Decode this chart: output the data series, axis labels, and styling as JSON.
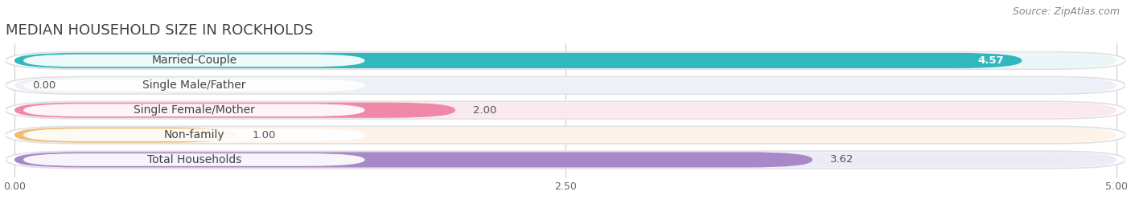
{
  "title": "MEDIAN HOUSEHOLD SIZE IN ROCKHOLDS",
  "source": "Source: ZipAtlas.com",
  "categories": [
    "Married-Couple",
    "Single Male/Father",
    "Single Female/Mother",
    "Non-family",
    "Total Households"
  ],
  "values": [
    4.57,
    0.0,
    2.0,
    1.0,
    3.62
  ],
  "bar_colors": [
    "#30b8be",
    "#a0aadd",
    "#f088a8",
    "#f0bc78",
    "#a888c8"
  ],
  "bar_bg_colors": [
    "#eaf6f7",
    "#eef0f8",
    "#faeaf0",
    "#fdf3e8",
    "#eeeaf6"
  ],
  "xlim": [
    0,
    5.0
  ],
  "xticks": [
    0.0,
    2.5,
    5.0
  ],
  "xtick_labels": [
    "0.00",
    "2.50",
    "5.00"
  ],
  "value_labels": [
    "4.57",
    "0.00",
    "2.00",
    "1.00",
    "3.62"
  ],
  "title_fontsize": 13,
  "source_fontsize": 9,
  "label_fontsize": 10,
  "value_fontsize": 9.5,
  "background_color": "#ffffff",
  "grid_color": "#cccccc",
  "bar_outline_color": "#dddddd"
}
